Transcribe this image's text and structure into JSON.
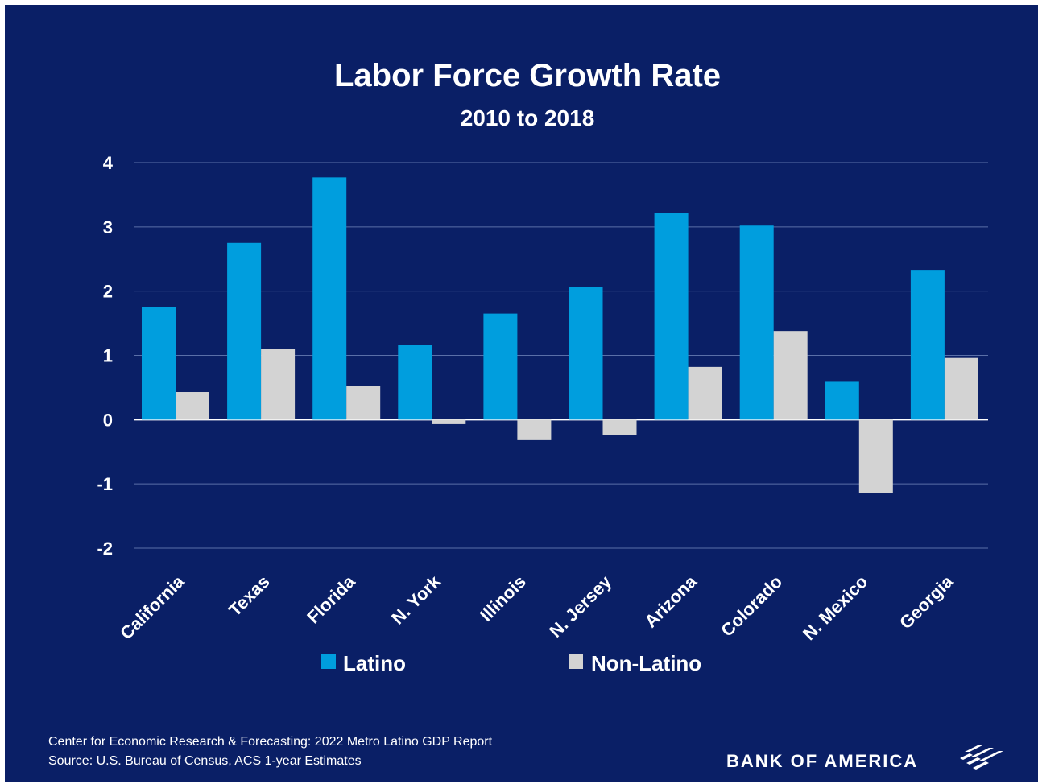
{
  "chart_data": {
    "type": "bar",
    "title": "Labor Force Growth Rate",
    "subtitle": "2010 to 2018",
    "categories": [
      "California",
      "Texas",
      "Florida",
      "N. York",
      "Illinois",
      "N. Jersey",
      "Arizona",
      "Colorado",
      "N. Mexico",
      "Georgia"
    ],
    "series": [
      {
        "name": "Latino",
        "color": "#009ede",
        "values": [
          1.75,
          2.75,
          3.77,
          1.16,
          1.65,
          2.07,
          3.22,
          3.02,
          0.6,
          2.32
        ]
      },
      {
        "name": "Non-Latino",
        "color": "#d3d3d3",
        "values": [
          0.43,
          1.1,
          0.53,
          -0.07,
          -0.32,
          -0.24,
          0.82,
          1.38,
          -1.14,
          0.96
        ]
      }
    ],
    "ylim": [
      -2,
      4
    ],
    "yticks": [
      "-2",
      "-1",
      "0",
      "1",
      "2",
      "3",
      "4"
    ],
    "grid": true,
    "legend_position": "bottom"
  },
  "footer": {
    "source_line1": "Center for Economic Research & Forecasting: 2022 Metro Latino GDP Report",
    "source_line2": "Source: U.S. Bureau of Census, ACS 1-year Estimates",
    "brand": "BANK OF AMERICA"
  },
  "colors": {
    "background": "#0a1f66",
    "gridline": "#5a6fa8",
    "latino": "#009ede",
    "non_latino": "#d3d3d3"
  }
}
